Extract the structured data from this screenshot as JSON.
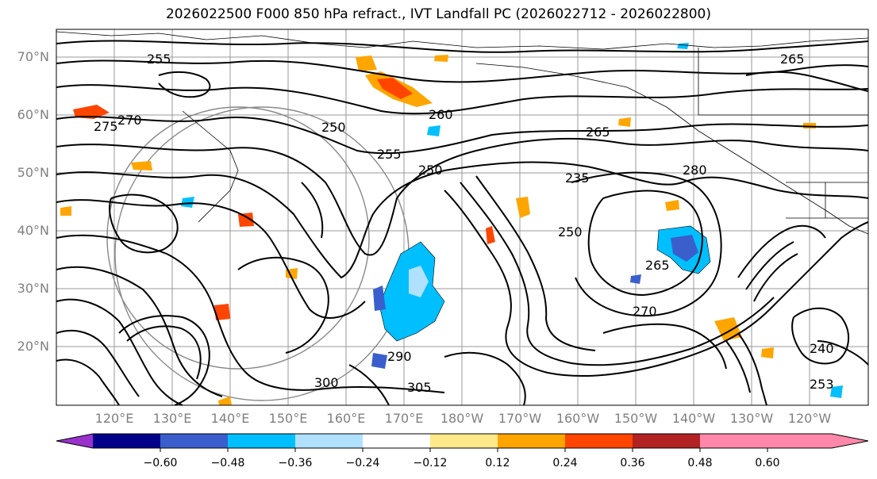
{
  "title": "2026022500 F000 850 hPa refract., IVT Landfall PC (2026022712 - 2026022800)",
  "map": {
    "lat_labels": [
      "70°N",
      "60°N",
      "50°N",
      "40°N",
      "30°N",
      "20°N"
    ],
    "lon_labels": [
      "120°E",
      "130°E",
      "140°E",
      "150°E",
      "160°E",
      "170°E",
      "180°W",
      "170°W",
      "160°W",
      "150°W",
      "140°W",
      "130°W",
      "120°W"
    ],
    "contour_labels": [
      "255",
      "270",
      "265",
      "260",
      "250",
      "255",
      "250",
      "275",
      "265",
      "235",
      "250",
      "270",
      "280",
      "265",
      "290",
      "300",
      "305",
      "240",
      "253"
    ]
  },
  "colorbar": {
    "ticks": [
      "−0.60",
      "−0.48",
      "−0.36",
      "−0.24",
      "−0.12",
      "0.12",
      "0.24",
      "0.36",
      "0.48",
      "0.60"
    ],
    "colors": [
      "#9932CC",
      "#00008B",
      "#3A5FCD",
      "#00BFFF",
      "#B0E2FF",
      "#FFFFFF",
      "#FFE98A",
      "#FFA500",
      "#FF4500",
      "#B22222",
      "#FF88AA"
    ]
  }
}
